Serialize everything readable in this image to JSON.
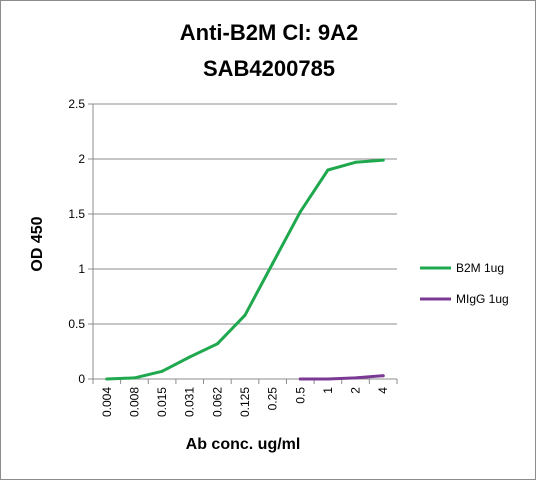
{
  "chart_data": {
    "type": "line",
    "title": [
      "Anti-B2M Cl: 9A2",
      "SAB4200785"
    ],
    "xlabel": "Ab conc. ug/ml",
    "ylabel": "OD 450",
    "categories": [
      "0.004",
      "0.008",
      "0.015",
      "0.031",
      "0.062",
      "0.125",
      "0.25",
      "0.5",
      "1",
      "2",
      "4"
    ],
    "ylim": [
      0,
      2.5
    ],
    "yticks": [
      0,
      0.5,
      1,
      1.5,
      2,
      2.5
    ],
    "grid": true,
    "legend_position": "right",
    "series": [
      {
        "name": "B2M 1ug",
        "color": "#1fa84e",
        "values": [
          0.0,
          0.01,
          0.07,
          0.2,
          0.32,
          0.58,
          1.05,
          1.52,
          1.9,
          1.97,
          1.99
        ]
      },
      {
        "name": "MIgG 1ug",
        "color": "#7a3a93",
        "values": [
          null,
          null,
          null,
          null,
          null,
          null,
          null,
          0.0,
          0.0,
          0.01,
          0.03
        ]
      }
    ]
  }
}
